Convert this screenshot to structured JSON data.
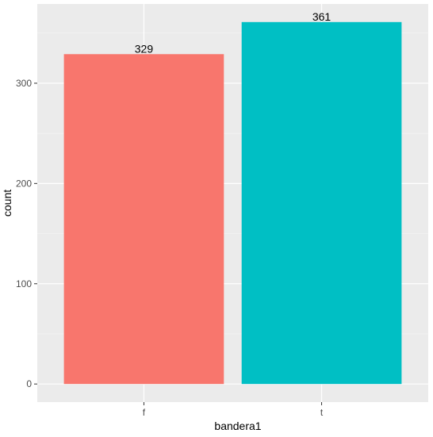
{
  "chart_data": {
    "type": "bar",
    "categories": [
      "f",
      "t"
    ],
    "values": [
      329,
      361
    ],
    "colors": [
      "#F8766D",
      "#00BFC4"
    ],
    "xlabel": "bandera1",
    "ylabel": "count",
    "ylim": [
      -18.05,
      379.05
    ],
    "yticks": [
      0,
      100,
      200,
      300
    ],
    "y_minor_grid": [
      50,
      150,
      250,
      350
    ],
    "grid": true,
    "data_labels": true
  }
}
